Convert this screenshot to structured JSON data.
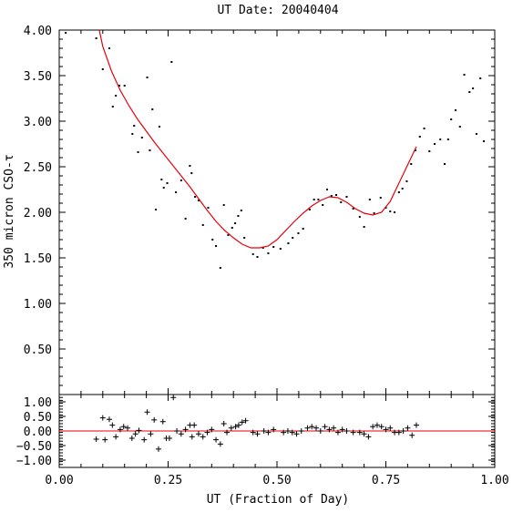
{
  "chart_data": [
    {
      "type": "scatter",
      "title": "UT Date: 20040404",
      "xlabel": "",
      "ylabel": "350 micron CSO-τ",
      "xlim": [
        0.0,
        1.0
      ],
      "ylim": [
        0.0,
        4.0
      ],
      "x_ticks": [
        "0.00",
        "0.25",
        "0.50",
        "0.75",
        "1.00"
      ],
      "y_ticks": [
        "0.50",
        "1.00",
        "1.50",
        "2.00",
        "2.50",
        "3.00",
        "3.50",
        "4.00"
      ],
      "y_tick_values": [
        0.5,
        1.0,
        1.5,
        2.0,
        2.5,
        3.0,
        3.5,
        4.0
      ],
      "grid": false,
      "colors": {
        "points": "#000000",
        "fit": "#e8000b"
      },
      "series": [
        {
          "marker": "dot",
          "x": [
            0.015,
            0.085,
            0.1,
            0.115,
            0.123,
            0.13,
            0.138,
            0.15,
            0.168,
            0.172,
            0.181,
            0.19,
            0.202,
            0.208,
            0.214,
            0.222,
            0.23,
            0.235,
            0.24,
            0.248,
            0.258,
            0.268,
            0.28,
            0.29,
            0.3,
            0.304,
            0.312,
            0.32,
            0.33,
            0.342,
            0.352,
            0.36,
            0.37,
            0.378,
            0.388,
            0.397,
            0.404,
            0.411,
            0.418,
            0.425,
            0.445,
            0.455,
            0.468,
            0.48,
            0.492,
            0.508,
            0.526,
            0.536,
            0.549,
            0.56,
            0.575,
            0.585,
            0.595,
            0.605,
            0.615,
            0.625,
            0.636,
            0.647,
            0.66,
            0.675,
            0.69,
            0.7,
            0.713,
            0.723,
            0.738,
            0.75,
            0.76,
            0.77,
            0.78,
            0.788,
            0.798,
            0.808,
            0.818,
            0.828,
            0.838,
            0.85,
            0.862,
            0.875,
            0.885,
            0.893,
            0.9,
            0.91,
            0.92,
            0.93,
            0.942,
            0.95,
            0.958,
            0.967,
            0.975
          ],
          "y": [
            3.97,
            3.91,
            3.57,
            3.8,
            3.16,
            3.28,
            3.39,
            3.39,
            2.86,
            2.95,
            2.66,
            2.82,
            3.48,
            2.68,
            3.13,
            2.03,
            2.94,
            2.36,
            2.27,
            2.32,
            3.65,
            2.22,
            2.35,
            1.93,
            2.51,
            2.43,
            2.17,
            2.13,
            1.86,
            2.05,
            1.7,
            1.63,
            1.39,
            2.08,
            1.75,
            1.83,
            1.88,
            1.96,
            2.02,
            1.72,
            1.54,
            1.51,
            1.61,
            1.55,
            1.62,
            1.6,
            1.66,
            1.72,
            1.77,
            1.82,
            2.03,
            2.14,
            2.14,
            2.08,
            2.25,
            2.18,
            2.19,
            2.11,
            2.17,
            2.04,
            1.95,
            1.84,
            2.14,
            1.99,
            2.16,
            2.05,
            2.01,
            2.0,
            2.22,
            2.26,
            2.34,
            2.53,
            2.68,
            2.83,
            2.92,
            2.67,
            2.75,
            2.8,
            2.53,
            2.8,
            3.02,
            3.12,
            2.94,
            3.51,
            3.32,
            3.36,
            2.86,
            3.47,
            2.78
          ]
        },
        {
          "name": "",
          "marker": "line",
          "x": [
            0.092,
            0.1,
            0.12,
            0.14,
            0.16,
            0.18,
            0.2,
            0.22,
            0.24,
            0.26,
            0.28,
            0.3,
            0.32,
            0.34,
            0.36,
            0.38,
            0.4,
            0.42,
            0.44,
            0.46,
            0.48,
            0.5,
            0.52,
            0.54,
            0.56,
            0.58,
            0.6,
            0.62,
            0.64,
            0.66,
            0.68,
            0.7,
            0.72,
            0.74,
            0.76,
            0.78,
            0.8,
            0.82
          ],
          "y": [
            4.0,
            3.82,
            3.55,
            3.34,
            3.17,
            3.02,
            2.89,
            2.76,
            2.64,
            2.52,
            2.4,
            2.28,
            2.15,
            2.02,
            1.9,
            1.8,
            1.72,
            1.65,
            1.61,
            1.61,
            1.63,
            1.7,
            1.8,
            1.9,
            1.99,
            2.07,
            2.13,
            2.17,
            2.16,
            2.11,
            2.04,
            1.99,
            1.97,
            2.0,
            2.12,
            2.32,
            2.52,
            2.72
          ]
        }
      ]
    },
    {
      "type": "scatter",
      "title": "",
      "xlabel": "UT (Fraction of Day)",
      "ylabel": "",
      "xlim": [
        0.0,
        1.0
      ],
      "ylim": [
        -1.25,
        1.25
      ],
      "x_ticks": [
        "0.00",
        "0.25",
        "0.50",
        "0.75",
        "1.00"
      ],
      "y_ticks": [
        "−1.00",
        "−0.50",
        "0.00",
        "0.50",
        "1.00"
      ],
      "y_tick_values": [
        -1.0,
        -0.5,
        0.0,
        0.5,
        1.0
      ],
      "grid": false,
      "colors": {
        "points": "#000000",
        "zero_line": "#e8000b"
      },
      "series": [
        {
          "marker": "plus",
          "x": [
            0.085,
            0.1,
            0.105,
            0.115,
            0.122,
            0.13,
            0.14,
            0.148,
            0.157,
            0.167,
            0.175,
            0.183,
            0.195,
            0.202,
            0.21,
            0.218,
            0.228,
            0.238,
            0.246,
            0.253,
            0.262,
            0.27,
            0.28,
            0.29,
            0.3,
            0.305,
            0.31,
            0.32,
            0.33,
            0.34,
            0.35,
            0.36,
            0.37,
            0.378,
            0.385,
            0.395,
            0.405,
            0.412,
            0.42,
            0.428,
            0.445,
            0.455,
            0.47,
            0.48,
            0.492,
            0.515,
            0.525,
            0.535,
            0.545,
            0.556,
            0.57,
            0.58,
            0.59,
            0.6,
            0.61,
            0.62,
            0.63,
            0.64,
            0.65,
            0.66,
            0.675,
            0.69,
            0.7,
            0.71,
            0.72,
            0.73,
            0.74,
            0.75,
            0.76,
            0.77,
            0.78,
            0.79,
            0.8,
            0.81,
            0.82
          ],
          "y": [
            -0.28,
            0.45,
            -0.3,
            0.4,
            0.2,
            -0.2,
            0.05,
            0.15,
            0.1,
            -0.25,
            -0.1,
            0.02,
            -0.3,
            0.65,
            -0.1,
            0.38,
            -0.62,
            0.32,
            -0.25,
            -0.25,
            1.15,
            0.0,
            -0.1,
            0.05,
            0.2,
            -0.2,
            0.2,
            -0.1,
            -0.2,
            -0.05,
            0.05,
            -0.3,
            -0.45,
            0.25,
            -0.05,
            0.1,
            0.15,
            0.2,
            0.3,
            0.35,
            -0.05,
            -0.1,
            0.0,
            -0.05,
            0.05,
            -0.05,
            0.0,
            -0.05,
            -0.1,
            0.0,
            0.1,
            0.15,
            0.1,
            0.0,
            0.15,
            0.05,
            0.1,
            -0.05,
            0.05,
            0.0,
            -0.05,
            -0.05,
            -0.1,
            -0.2,
            0.15,
            0.2,
            0.15,
            0.05,
            0.1,
            -0.05,
            -0.05,
            0.0,
            0.1,
            -0.15,
            0.2
          ]
        }
      ],
      "reference_line": {
        "y": 0.0
      }
    }
  ]
}
